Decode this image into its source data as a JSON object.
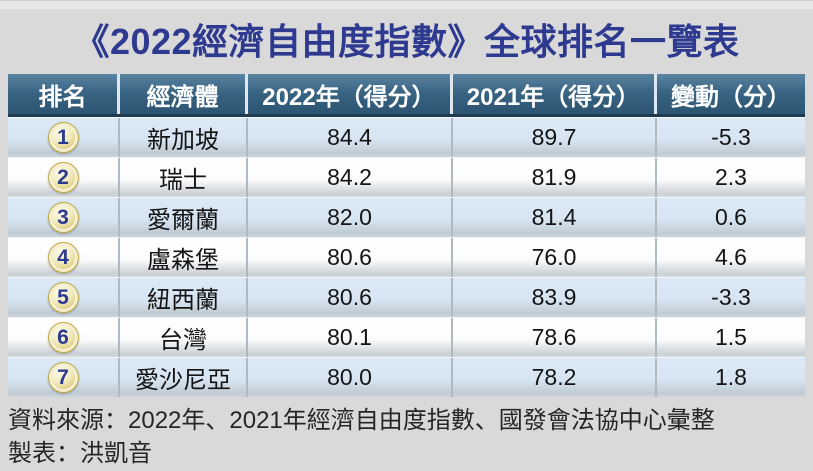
{
  "title": "《2022經濟自由度指數》全球排名一覽表",
  "table": {
    "columns": [
      "排名",
      "經濟體",
      "2022年（得分）",
      "2021年（得分）",
      "變動（分）"
    ],
    "rows": [
      {
        "rank": "1",
        "economy": "新加坡",
        "score2022": "84.4",
        "score2021": "89.7",
        "change": "-5.3"
      },
      {
        "rank": "2",
        "economy": "瑞士",
        "score2022": "84.2",
        "score2021": "81.9",
        "change": "2.3"
      },
      {
        "rank": "3",
        "economy": "愛爾蘭",
        "score2022": "82.0",
        "score2021": "81.4",
        "change": "0.6"
      },
      {
        "rank": "4",
        "economy": "盧森堡",
        "score2022": "80.6",
        "score2021": "76.0",
        "change": "4.6"
      },
      {
        "rank": "5",
        "economy": "紐西蘭",
        "score2022": "80.6",
        "score2021": "83.9",
        "change": "-3.3"
      },
      {
        "rank": "6",
        "economy": "台灣",
        "score2022": "80.1",
        "score2021": "78.6",
        "change": "1.5"
      },
      {
        "rank": "7",
        "economy": "愛沙尼亞",
        "score2022": "80.0",
        "score2021": "78.2",
        "change": "1.8"
      }
    ]
  },
  "footer": {
    "source": "資料來源：2022年、2021年經濟自由度指數、國發會法協中心彙整",
    "credit": "製表：洪凱音"
  },
  "colors": {
    "title_text": "#2e3a90",
    "header_bg": "#35617f",
    "header_text": "#ffffff",
    "row_odd_bg": "#d7e5f3",
    "row_even_bg": "#ffffff",
    "badge_gold": "#d9c567",
    "badge_number": "#2b3a8f",
    "page_bg": "#d9d9d9"
  },
  "chart_data": {
    "type": "table",
    "title": "《2022經濟自由度指數》全球排名一覽表",
    "columns": [
      "排名",
      "經濟體",
      "2022年（得分）",
      "2021年（得分）",
      "變動（分）"
    ],
    "rows": [
      [
        1,
        "新加坡",
        84.4,
        89.7,
        -5.3
      ],
      [
        2,
        "瑞士",
        84.2,
        81.9,
        2.3
      ],
      [
        3,
        "愛爾蘭",
        82.0,
        81.4,
        0.6
      ],
      [
        4,
        "盧森堡",
        80.6,
        76.0,
        4.6
      ],
      [
        5,
        "紐西蘭",
        80.6,
        83.9,
        -3.3
      ],
      [
        6,
        "台灣",
        80.1,
        78.6,
        1.5
      ],
      [
        7,
        "愛沙尼亞",
        80.0,
        78.2,
        1.8
      ]
    ],
    "notes": [
      "資料來源：2022年、2021年經濟自由度指數、國發會法協中心彙整",
      "製表：洪凱音"
    ]
  }
}
